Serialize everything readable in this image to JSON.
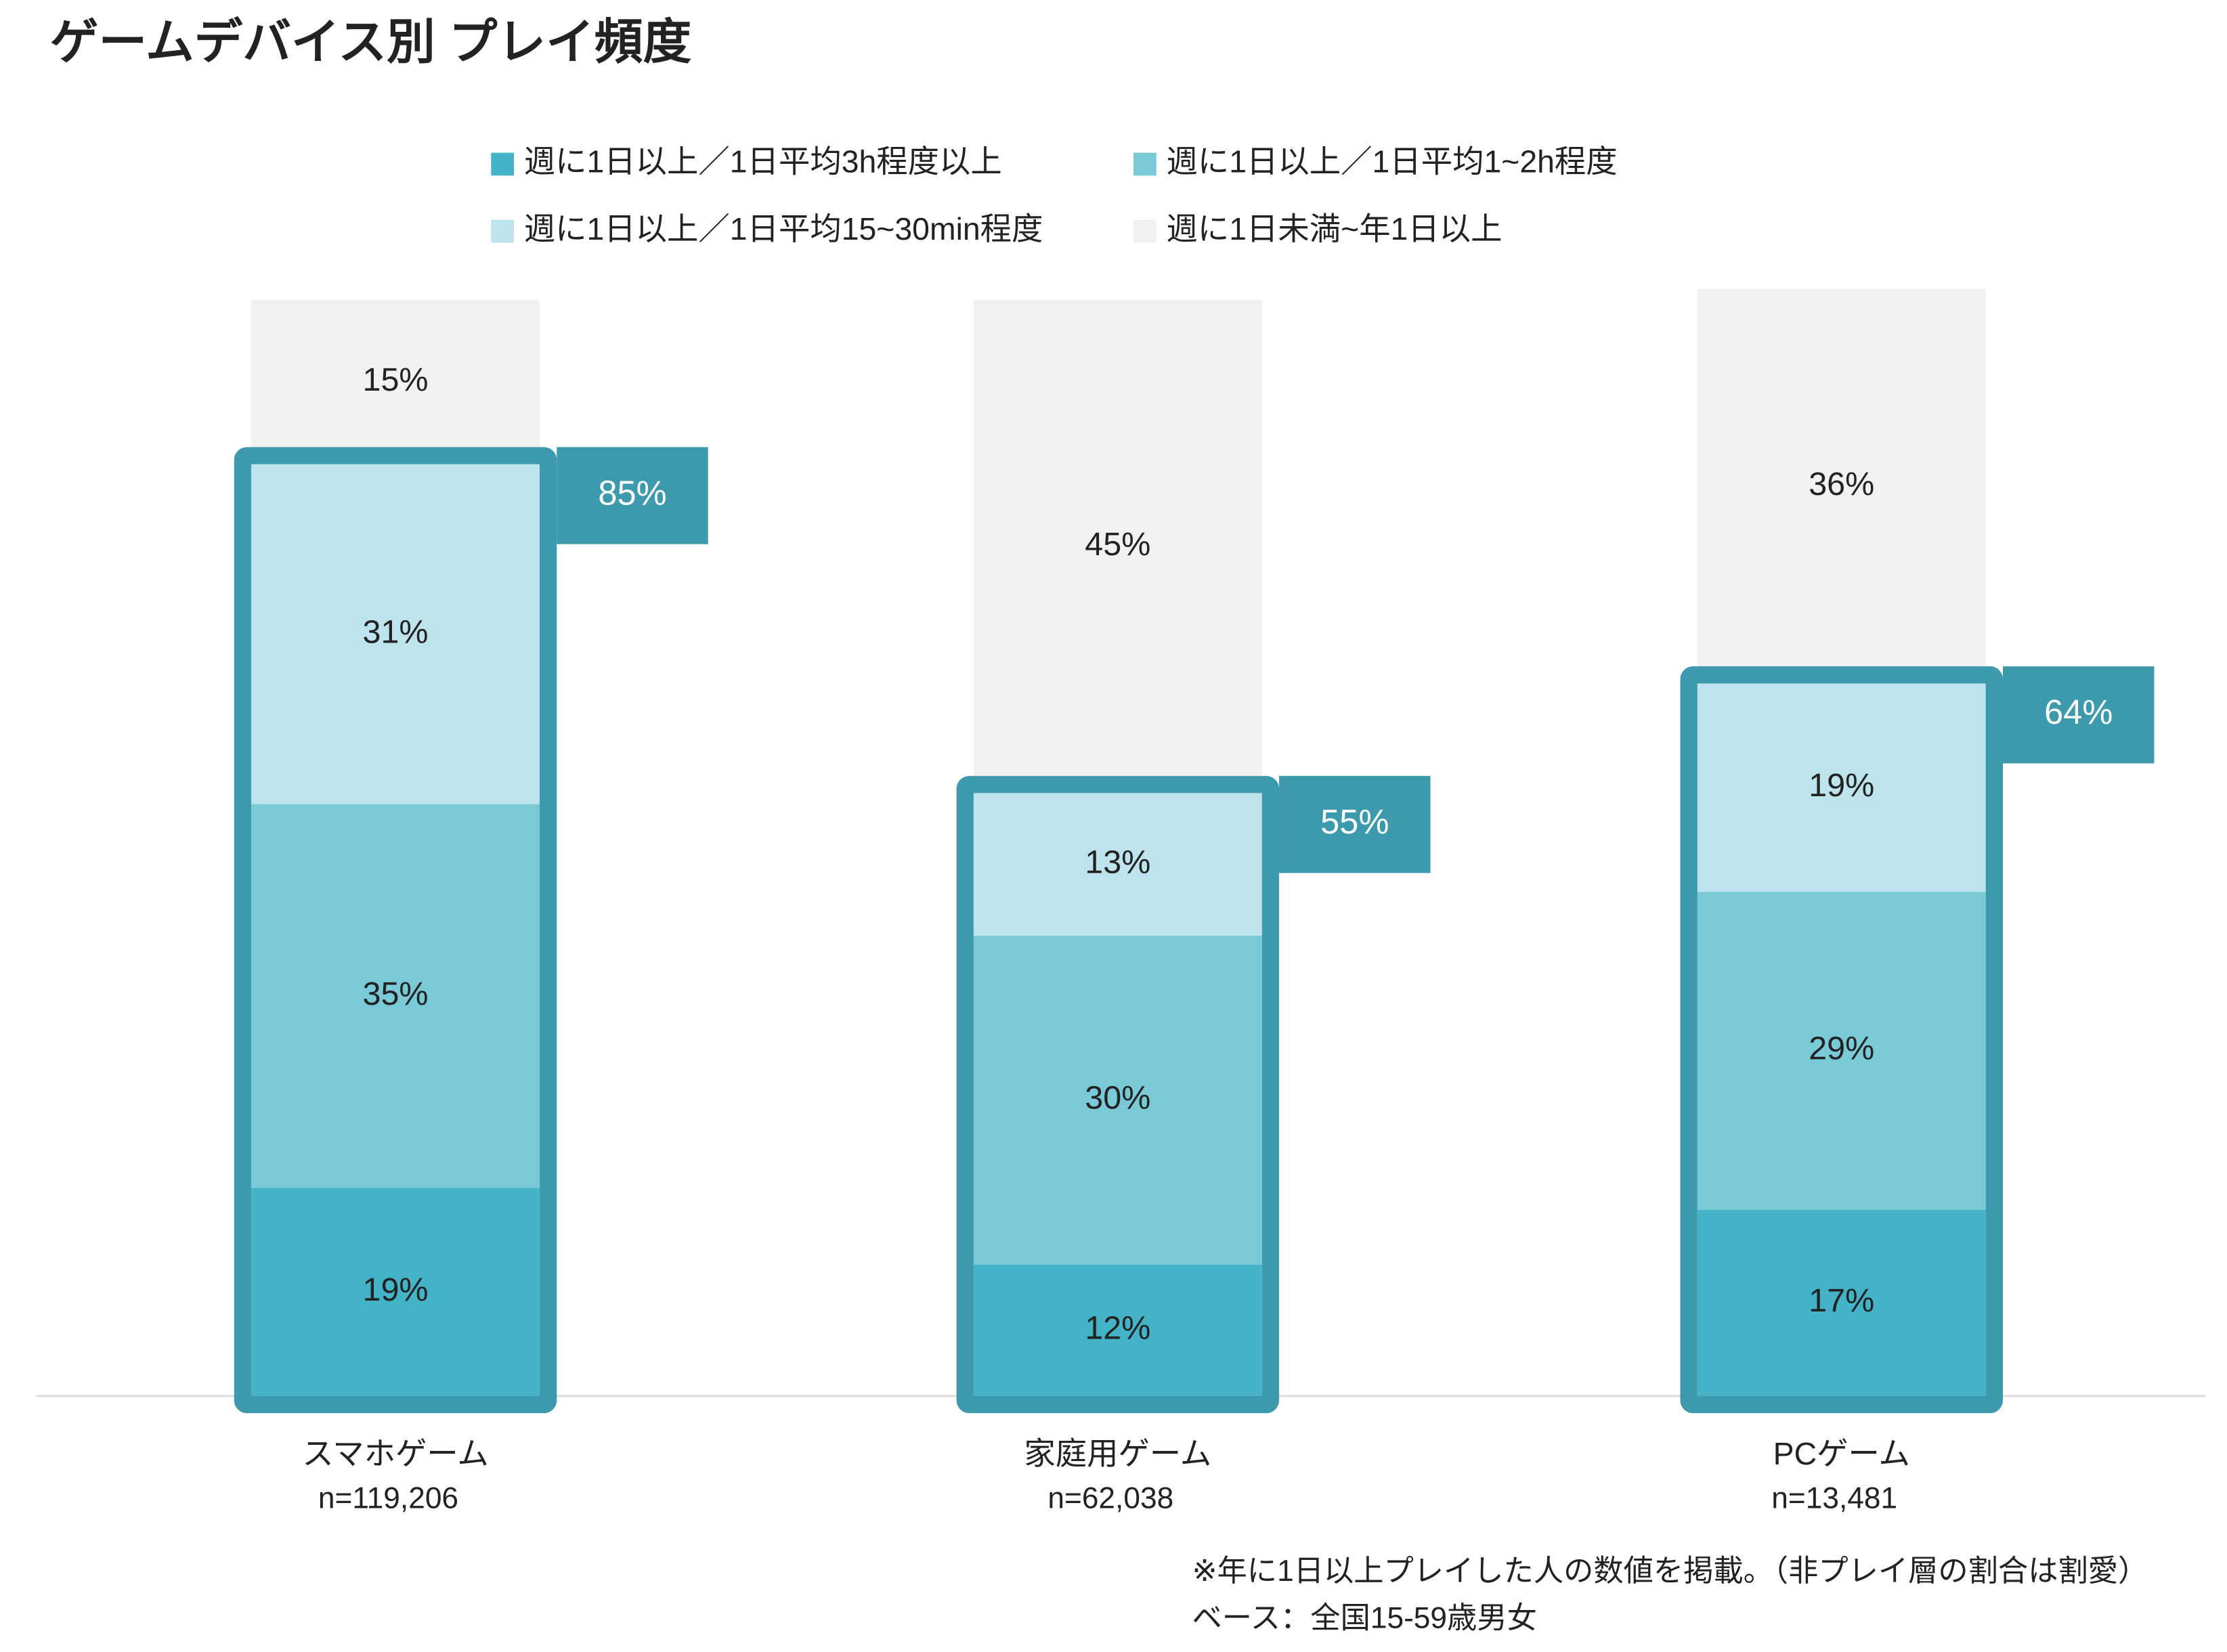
{
  "chart_data": {
    "type": "stacked-bar",
    "title": "ゲームデバイス別 プレイ頻度",
    "categories": [
      "スマホゲーム",
      "家庭用ゲーム",
      "PCゲーム"
    ],
    "sample_labels": [
      "n=119,206",
      "n=62,038",
      "n=13,481"
    ],
    "ylim": [
      0,
      100
    ],
    "legend": "top",
    "series": [
      {
        "name": "週に1日以上／1日平均3h程度以上",
        "color": "#44b3c8",
        "values": [
          19,
          12,
          17
        ],
        "value_labels": [
          "19%",
          "12%",
          "17%"
        ]
      },
      {
        "name": "週に1日以上／1日平均1~2h程度",
        "color": "#7ac9d6",
        "values": [
          35,
          30,
          29
        ],
        "value_labels": [
          "35%",
          "30%",
          "29%"
        ]
      },
      {
        "name": "週に1日以上／1日平均15~30min程度",
        "color": "#bde4ec",
        "values": [
          31,
          13,
          19
        ],
        "value_labels": [
          "31%",
          "13%",
          "19%"
        ]
      },
      {
        "name": "週に1日未満~年1日以上",
        "color": "#f1f1f1",
        "values": [
          15,
          45,
          36
        ],
        "value_labels": [
          "15%",
          "45%",
          "36%"
        ]
      }
    ],
    "totals": {
      "color": "#3d9aad",
      "values": [
        85,
        55,
        64
      ],
      "value_labels": [
        "85%",
        "55%",
        "64%"
      ]
    },
    "notes": [
      "※年に1日以上プレイした人の数値を掲載。（非プレイ層の割合は割愛）",
      "ベース：全国15-59歳男女"
    ]
  }
}
